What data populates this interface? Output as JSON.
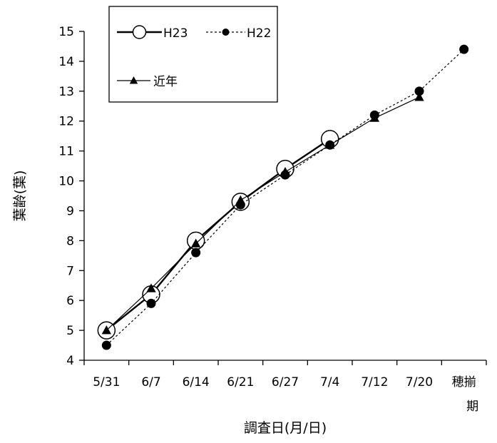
{
  "chart_data": {
    "type": "line",
    "xlabel": "調査日(月/日)",
    "ylabel": "葉齢(葉)",
    "ylim": [
      4,
      15
    ],
    "yticks": [
      4,
      5,
      6,
      7,
      8,
      9,
      10,
      11,
      12,
      13,
      14,
      15
    ],
    "categories": [
      "5/31",
      "6/7",
      "6/14",
      "6/21",
      "6/27",
      "7/4",
      "7/12",
      "7/20",
      "穂揃期"
    ],
    "legend_position": "top-left",
    "grid": false,
    "series": [
      {
        "name": "H23",
        "style": "solid-open-circle",
        "values": [
          5.0,
          6.2,
          8.0,
          9.3,
          10.4,
          11.4,
          null,
          null,
          null
        ]
      },
      {
        "name": "H22",
        "style": "dashed-filled-circle",
        "values": [
          4.5,
          5.9,
          7.6,
          9.2,
          10.2,
          11.2,
          12.2,
          13.0,
          14.4
        ]
      },
      {
        "name": "近年",
        "style": "solid-filled-triangle",
        "values": [
          5.0,
          6.4,
          7.9,
          9.35,
          10.3,
          11.2,
          12.1,
          12.8,
          null
        ]
      }
    ]
  }
}
